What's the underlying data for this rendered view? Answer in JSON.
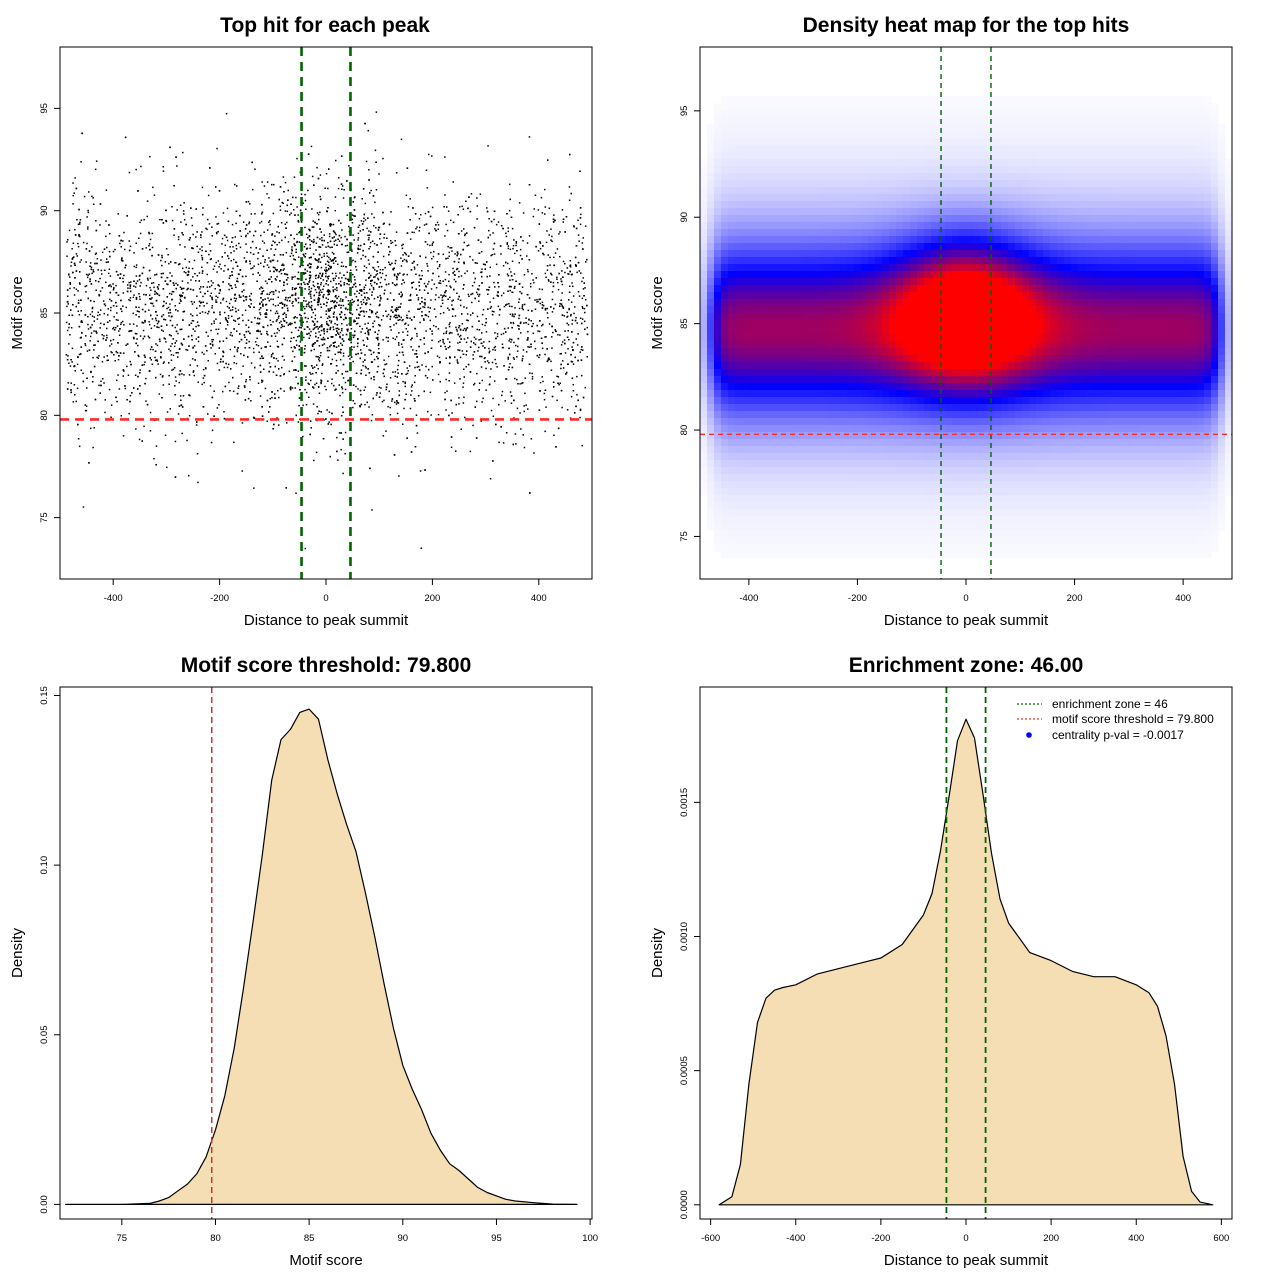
{
  "chart_data": [
    {
      "id": "scatter",
      "type": "scatter",
      "title": "Top hit for each peak",
      "xlabel": "Distance to peak summit",
      "ylabel": "Motif score",
      "xlim": [
        -500,
        500
      ],
      "ylim": [
        72,
        98
      ],
      "xticks": [
        -400,
        -200,
        0,
        200,
        400
      ],
      "yticks": [
        75,
        80,
        85,
        90,
        95
      ],
      "point_color": "#000000",
      "x_range_of_points": [
        -490,
        490
      ],
      "score_distribution": {
        "center": 85.2,
        "sd": 2.9,
        "central_center": 86.0,
        "central_sd": 2.6
      },
      "reference_lines": [
        {
          "orientation": "vertical",
          "value": -46,
          "style": "dashed",
          "color": "#006400"
        },
        {
          "orientation": "vertical",
          "value": 46,
          "style": "dashed",
          "color": "#006400"
        },
        {
          "orientation": "horizontal",
          "value": 79.8,
          "style": "dashed",
          "color": "#ff2a2a"
        }
      ]
    },
    {
      "id": "heatmap",
      "type": "heatmap",
      "title": "Density heat map for the top hits",
      "xlabel": "Distance to peak summit",
      "ylabel": "Motif score",
      "xlim": [
        -490,
        490
      ],
      "ylim": [
        73,
        98
      ],
      "xticks": [
        -400,
        -200,
        0,
        200,
        400
      ],
      "yticks": [
        75,
        80,
        85,
        90,
        95
      ],
      "colors": {
        "low": "#ffffff",
        "mid": "#0000ff",
        "high": "#ff0000"
      },
      "density_peak": {
        "x": 0,
        "y": 85.5
      },
      "reference_lines": [
        {
          "orientation": "vertical",
          "value": -46,
          "style": "dashed",
          "color": "#006400"
        },
        {
          "orientation": "vertical",
          "value": 46,
          "style": "dashed",
          "color": "#006400"
        },
        {
          "orientation": "horizontal",
          "value": 79.8,
          "style": "dashed",
          "color": "#ff2a2a"
        }
      ]
    },
    {
      "id": "scoredens",
      "type": "area",
      "title": "Motif score threshold: 79.800",
      "xlabel": "Motif score",
      "ylabel": "Density",
      "xlim": [
        71.7,
        100.1
      ],
      "ylim": [
        -0.0043,
        0.1525
      ],
      "xticks": [
        75,
        80,
        85,
        90,
        95,
        100
      ],
      "yticks": [
        0.0,
        0.05,
        0.1,
        0.15
      ],
      "ytick_labels": [
        "0.00",
        "0.05",
        "0.10",
        "0.15"
      ],
      "fill": "#f5deb3",
      "line_color": "#000000",
      "x": [
        72,
        75,
        76.5,
        77,
        77.5,
        78,
        78.5,
        79,
        79.5,
        80,
        80.5,
        81,
        81.5,
        82,
        82.5,
        83,
        83.5,
        84,
        84.5,
        85,
        85.5,
        86,
        86.5,
        87,
        87.5,
        88,
        88.5,
        89,
        89.5,
        90,
        90.5,
        91,
        91.5,
        92,
        92.5,
        93,
        93.5,
        94,
        94.5,
        95,
        95.5,
        96,
        97,
        98,
        99.3
      ],
      "y": [
        0.0,
        0.0,
        0.0003,
        0.001,
        0.002,
        0.004,
        0.006,
        0.009,
        0.014,
        0.022,
        0.032,
        0.046,
        0.064,
        0.083,
        0.103,
        0.125,
        0.137,
        0.14,
        0.145,
        0.146,
        0.143,
        0.131,
        0.121,
        0.112,
        0.104,
        0.092,
        0.079,
        0.065,
        0.052,
        0.041,
        0.034,
        0.028,
        0.021,
        0.016,
        0.012,
        0.01,
        0.0075,
        0.005,
        0.0035,
        0.0025,
        0.0015,
        0.001,
        0.0005,
        0.0001,
        0.0
      ],
      "reference_lines": [
        {
          "orientation": "vertical",
          "value": 79.8,
          "style": "dashed",
          "color": "#cd3333"
        }
      ]
    },
    {
      "id": "distdens",
      "type": "area",
      "title": "Enrichment zone: 46.00",
      "xlabel": "Distance to peak summit",
      "ylabel": "Density",
      "xlim": [
        -625,
        625
      ],
      "ylim": [
        -5.3e-05,
        0.00193
      ],
      "xticks": [
        -600,
        -400,
        -200,
        0,
        200,
        400,
        600
      ],
      "yticks": [
        0.0,
        0.0005,
        0.001,
        0.0015
      ],
      "ytick_labels": [
        "0.0000",
        "0.0005",
        "0.0010",
        "0.0015"
      ],
      "fill": "#f5deb3",
      "line_color": "#000000",
      "x": [
        -580,
        -550,
        -530,
        -510,
        -490,
        -470,
        -450,
        -430,
        -400,
        -350,
        -300,
        -250,
        -200,
        -150,
        -100,
        -80,
        -60,
        -40,
        -20,
        0,
        20,
        40,
        60,
        80,
        100,
        150,
        200,
        250,
        300,
        350,
        400,
        430,
        450,
        470,
        490,
        510,
        530,
        550,
        580
      ],
      "y": [
        0.0,
        3e-05,
        0.00015,
        0.00045,
        0.00068,
        0.00077,
        0.0008,
        0.00081,
        0.00082,
        0.00086,
        0.00088,
        0.0009,
        0.00092,
        0.00097,
        0.00108,
        0.00116,
        0.00132,
        0.00152,
        0.00173,
        0.00181,
        0.00174,
        0.00153,
        0.00131,
        0.00114,
        0.00105,
        0.00094,
        0.00091,
        0.00087,
        0.00085,
        0.00085,
        0.00082,
        0.00079,
        0.00074,
        0.00063,
        0.00045,
        0.00018,
        5e-05,
        1e-05,
        0.0
      ],
      "reference_lines": [
        {
          "orientation": "vertical",
          "value": -46,
          "style": "dashed",
          "color": "#006400"
        },
        {
          "orientation": "vertical",
          "value": 46,
          "style": "dashed",
          "color": "#006400"
        }
      ],
      "legend": {
        "placement": "top-right",
        "entries": [
          {
            "label": "enrichment zone = 46",
            "symbol": "dotted-line",
            "color": "#006400"
          },
          {
            "label": "motif score threshold = 79.800",
            "symbol": "dotted-line",
            "color": "#ff2a2a"
          },
          {
            "label": "centrality p-val = -0.0017",
            "symbol": "dot",
            "color": "#0000ff"
          }
        ]
      }
    }
  ]
}
